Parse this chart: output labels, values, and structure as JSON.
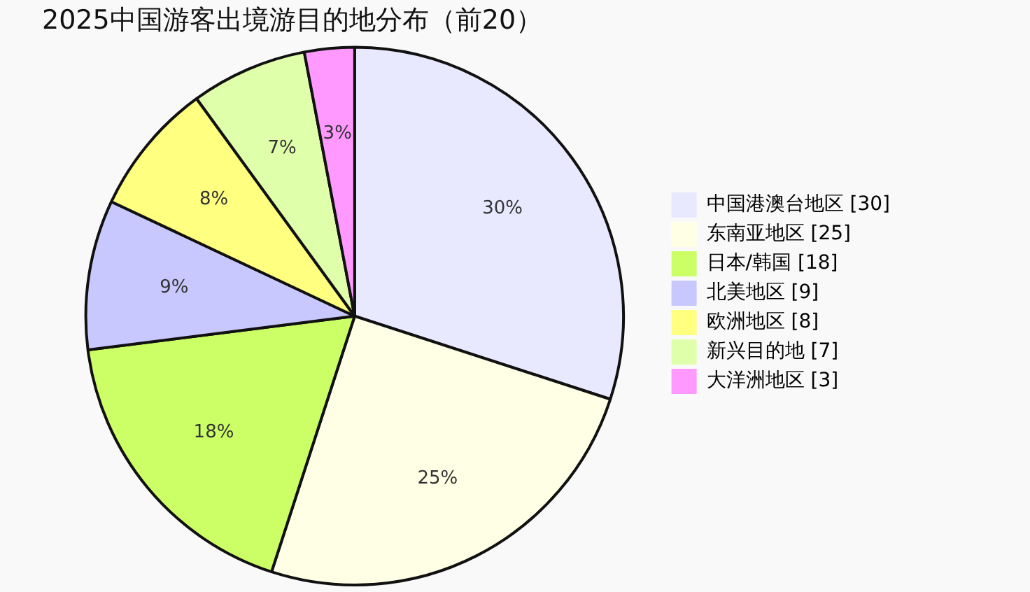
{
  "chart_data": {
    "type": "pie",
    "title": "2025中国游客出境游目的地分布（前20）",
    "categories": [
      "中国港澳台地区 [30]",
      "东南亚地区 [25]",
      "日本/韩国 [18]",
      "北美地区 [9]",
      "欧洲地区 [8]",
      "新兴目的地 [7]",
      "大洋洲地区 [3]"
    ],
    "values": [
      30,
      25,
      18,
      9,
      8,
      7,
      3
    ],
    "value_labels": [
      "30%",
      "25%",
      "18%",
      "9%",
      "8%",
      "7%",
      "3%"
    ],
    "colors": [
      "#e8e8ff",
      "#ffffe6",
      "#ccff66",
      "#c8c8ff",
      "#ffff80",
      "#e0ffaa",
      "#ff99ff"
    ],
    "legend": "right"
  }
}
